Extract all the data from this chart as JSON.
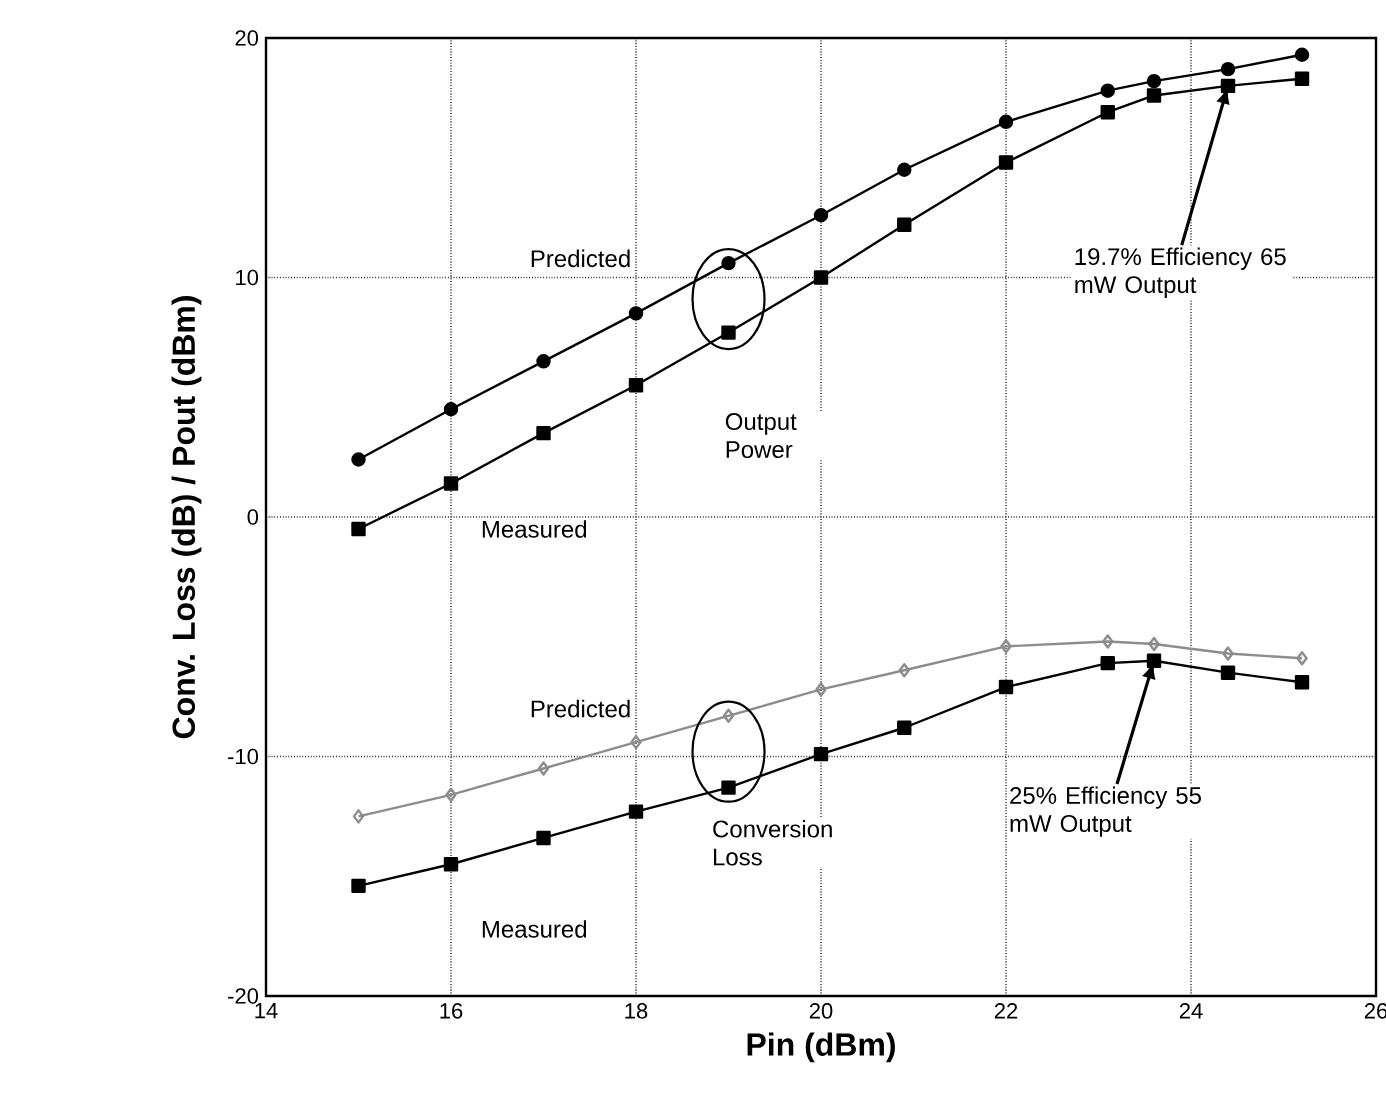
{
  "chart_data": {
    "type": "line",
    "xlabel": "Pin  (dBm)",
    "ylabel": "Conv.  Loss  (dB)  /  Pout  (dBm)",
    "x": [
      15,
      16,
      17,
      18,
      19,
      20,
      20.9,
      22,
      23.1,
      23.6,
      24.4,
      25.2
    ],
    "series": [
      {
        "color": "#000000",
        "marker": "circle",
        "values": [
          2.4,
          4.5,
          6.5,
          8.5,
          10.6,
          12.6,
          14.5,
          16.5,
          17.8,
          18.2,
          18.7,
          19.3
        ]
      },
      {
        "color": "#000000",
        "marker": "square",
        "values": [
          -0.5,
          1.4,
          3.5,
          5.5,
          7.7,
          10.0,
          12.2,
          14.8,
          16.9,
          17.6,
          18.0,
          18.3
        ]
      },
      {
        "color": "#8c8c8c",
        "marker": "diamond",
        "values": [
          -12.5,
          -11.6,
          -10.5,
          -9.4,
          -8.3,
          -7.2,
          -6.4,
          -5.4,
          -5.2,
          -5.3,
          -5.7,
          -5.9
        ]
      },
      {
        "color": "#000000",
        "marker": "square",
        "values": [
          -15.4,
          -14.5,
          -13.4,
          -12.3,
          -11.3,
          -9.9,
          -8.8,
          -7.1,
          -6.1,
          -6.0,
          -6.5,
          -6.9
        ]
      }
    ],
    "annotations": [
      "Predicted",
      "Measured",
      "Output Power",
      "Predicted",
      "Measured",
      "Conversion Loss",
      {
        "text": "19.7%  Efficiency 65 mW Output",
        "x": 24.4,
        "y": 18.0
      },
      {
        "text": "25%  Efficiency 55 mW Output",
        "x": 23.6,
        "y": -6.0
      }
    ],
    "xlim": [
      14,
      26
    ],
    "ylim": [
      -20,
      20
    ],
    "xticks": [
      14,
      16,
      18,
      20,
      22,
      24,
      26
    ],
    "yticks": [
      -20,
      -10,
      0,
      10,
      20
    ],
    "grid": true,
    "line_style": "solid"
  }
}
